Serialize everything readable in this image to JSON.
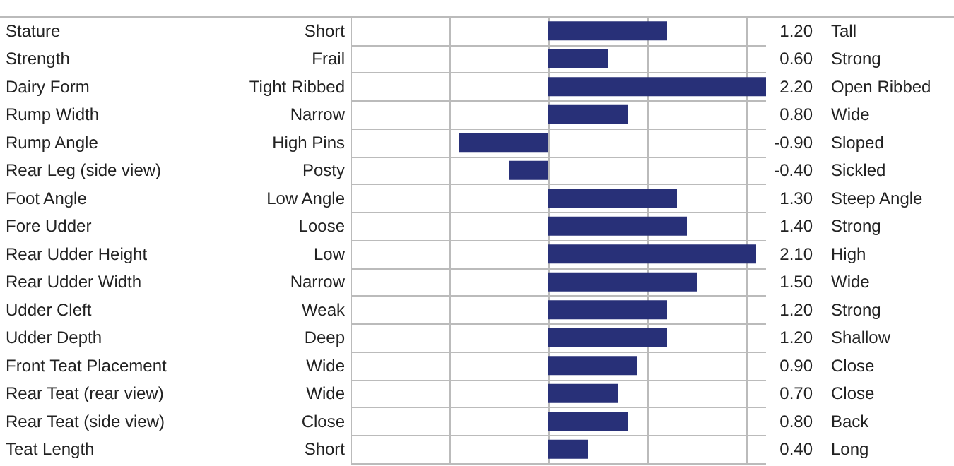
{
  "chart_data": {
    "type": "bar",
    "orientation": "horizontal",
    "categories": [
      "Stature",
      "Strength",
      "Dairy Form",
      "Rump Width",
      "Rump Angle",
      "Rear Leg (side view)",
      "Foot Angle",
      "Fore Udder",
      "Rear Udder Height",
      "Rear Udder Width",
      "Udder Cleft",
      "Udder Depth",
      "Front Teat Placement",
      "Rear Teat (rear view)",
      "Rear Teat (side view)",
      "Teat Length"
    ],
    "values": [
      1.2,
      0.6,
      2.2,
      0.8,
      -0.9,
      -0.4,
      1.3,
      1.4,
      2.1,
      1.5,
      1.2,
      1.2,
      0.9,
      0.7,
      0.8,
      0.4
    ],
    "value_labels": [
      "1.20",
      "0.60",
      "2.20",
      "0.80",
      "-0.90",
      "-0.40",
      "1.30",
      "1.40",
      "2.10",
      "1.50",
      "1.20",
      "1.20",
      "0.90",
      "0.70",
      "0.80",
      "0.40"
    ],
    "color": "#283078",
    "xlim": [
      -2,
      2.2
    ],
    "xticks": [
      {
        "value": -2,
        "label": null
      },
      {
        "value": -1,
        "label": null
      },
      {
        "value": 0,
        "label": null
      },
      {
        "value": 1,
        "label": null
      },
      {
        "value": 2,
        "label": null
      }
    ],
    "grid": true,
    "tick_labels": "y",
    "annotations": [
      "Short",
      "Tall",
      "Frail",
      "Strong",
      "Tight Ribbed",
      "Open Ribbed",
      "Narrow",
      "Wide",
      "High Pins",
      "Sloped",
      "Posty",
      "Sickled",
      "Low Angle",
      "Steep Angle",
      "Loose",
      "Strong",
      "Low",
      "High",
      "Narrow",
      "Wide",
      "Weak",
      "Strong",
      "Deep",
      "Shallow",
      "Wide",
      "Close",
      "Wide",
      "Close",
      "Close",
      "Back",
      "Short",
      "Long"
    ]
  }
}
